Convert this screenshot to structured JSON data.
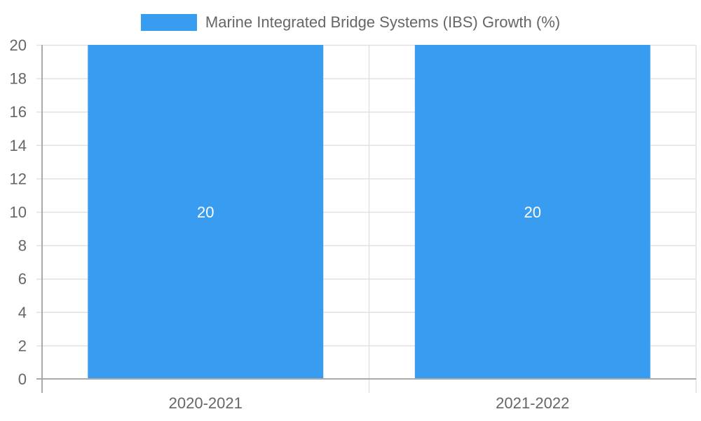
{
  "chart_data": {
    "type": "bar",
    "title": "",
    "categories": [
      "2020-2021",
      "2021-2022"
    ],
    "series": [
      {
        "name": "Marine Integrated Bridge Systems (IBS) Growth (%)",
        "values": [
          20,
          20
        ],
        "color": "#389CF0"
      }
    ],
    "values": [
      20,
      20
    ],
    "data_labels": [
      "20",
      "20"
    ],
    "xlabel": "",
    "ylabel": "",
    "ylim": [
      0,
      20
    ],
    "yticks": [
      "0",
      "2",
      "4",
      "6",
      "8",
      "10",
      "12",
      "14",
      "16",
      "18",
      "20"
    ],
    "grid": true,
    "legend_position": "top"
  },
  "legend": {
    "label": "Marine Integrated Bridge Systems (IBS) Growth (%)",
    "color": "#389CF0"
  }
}
